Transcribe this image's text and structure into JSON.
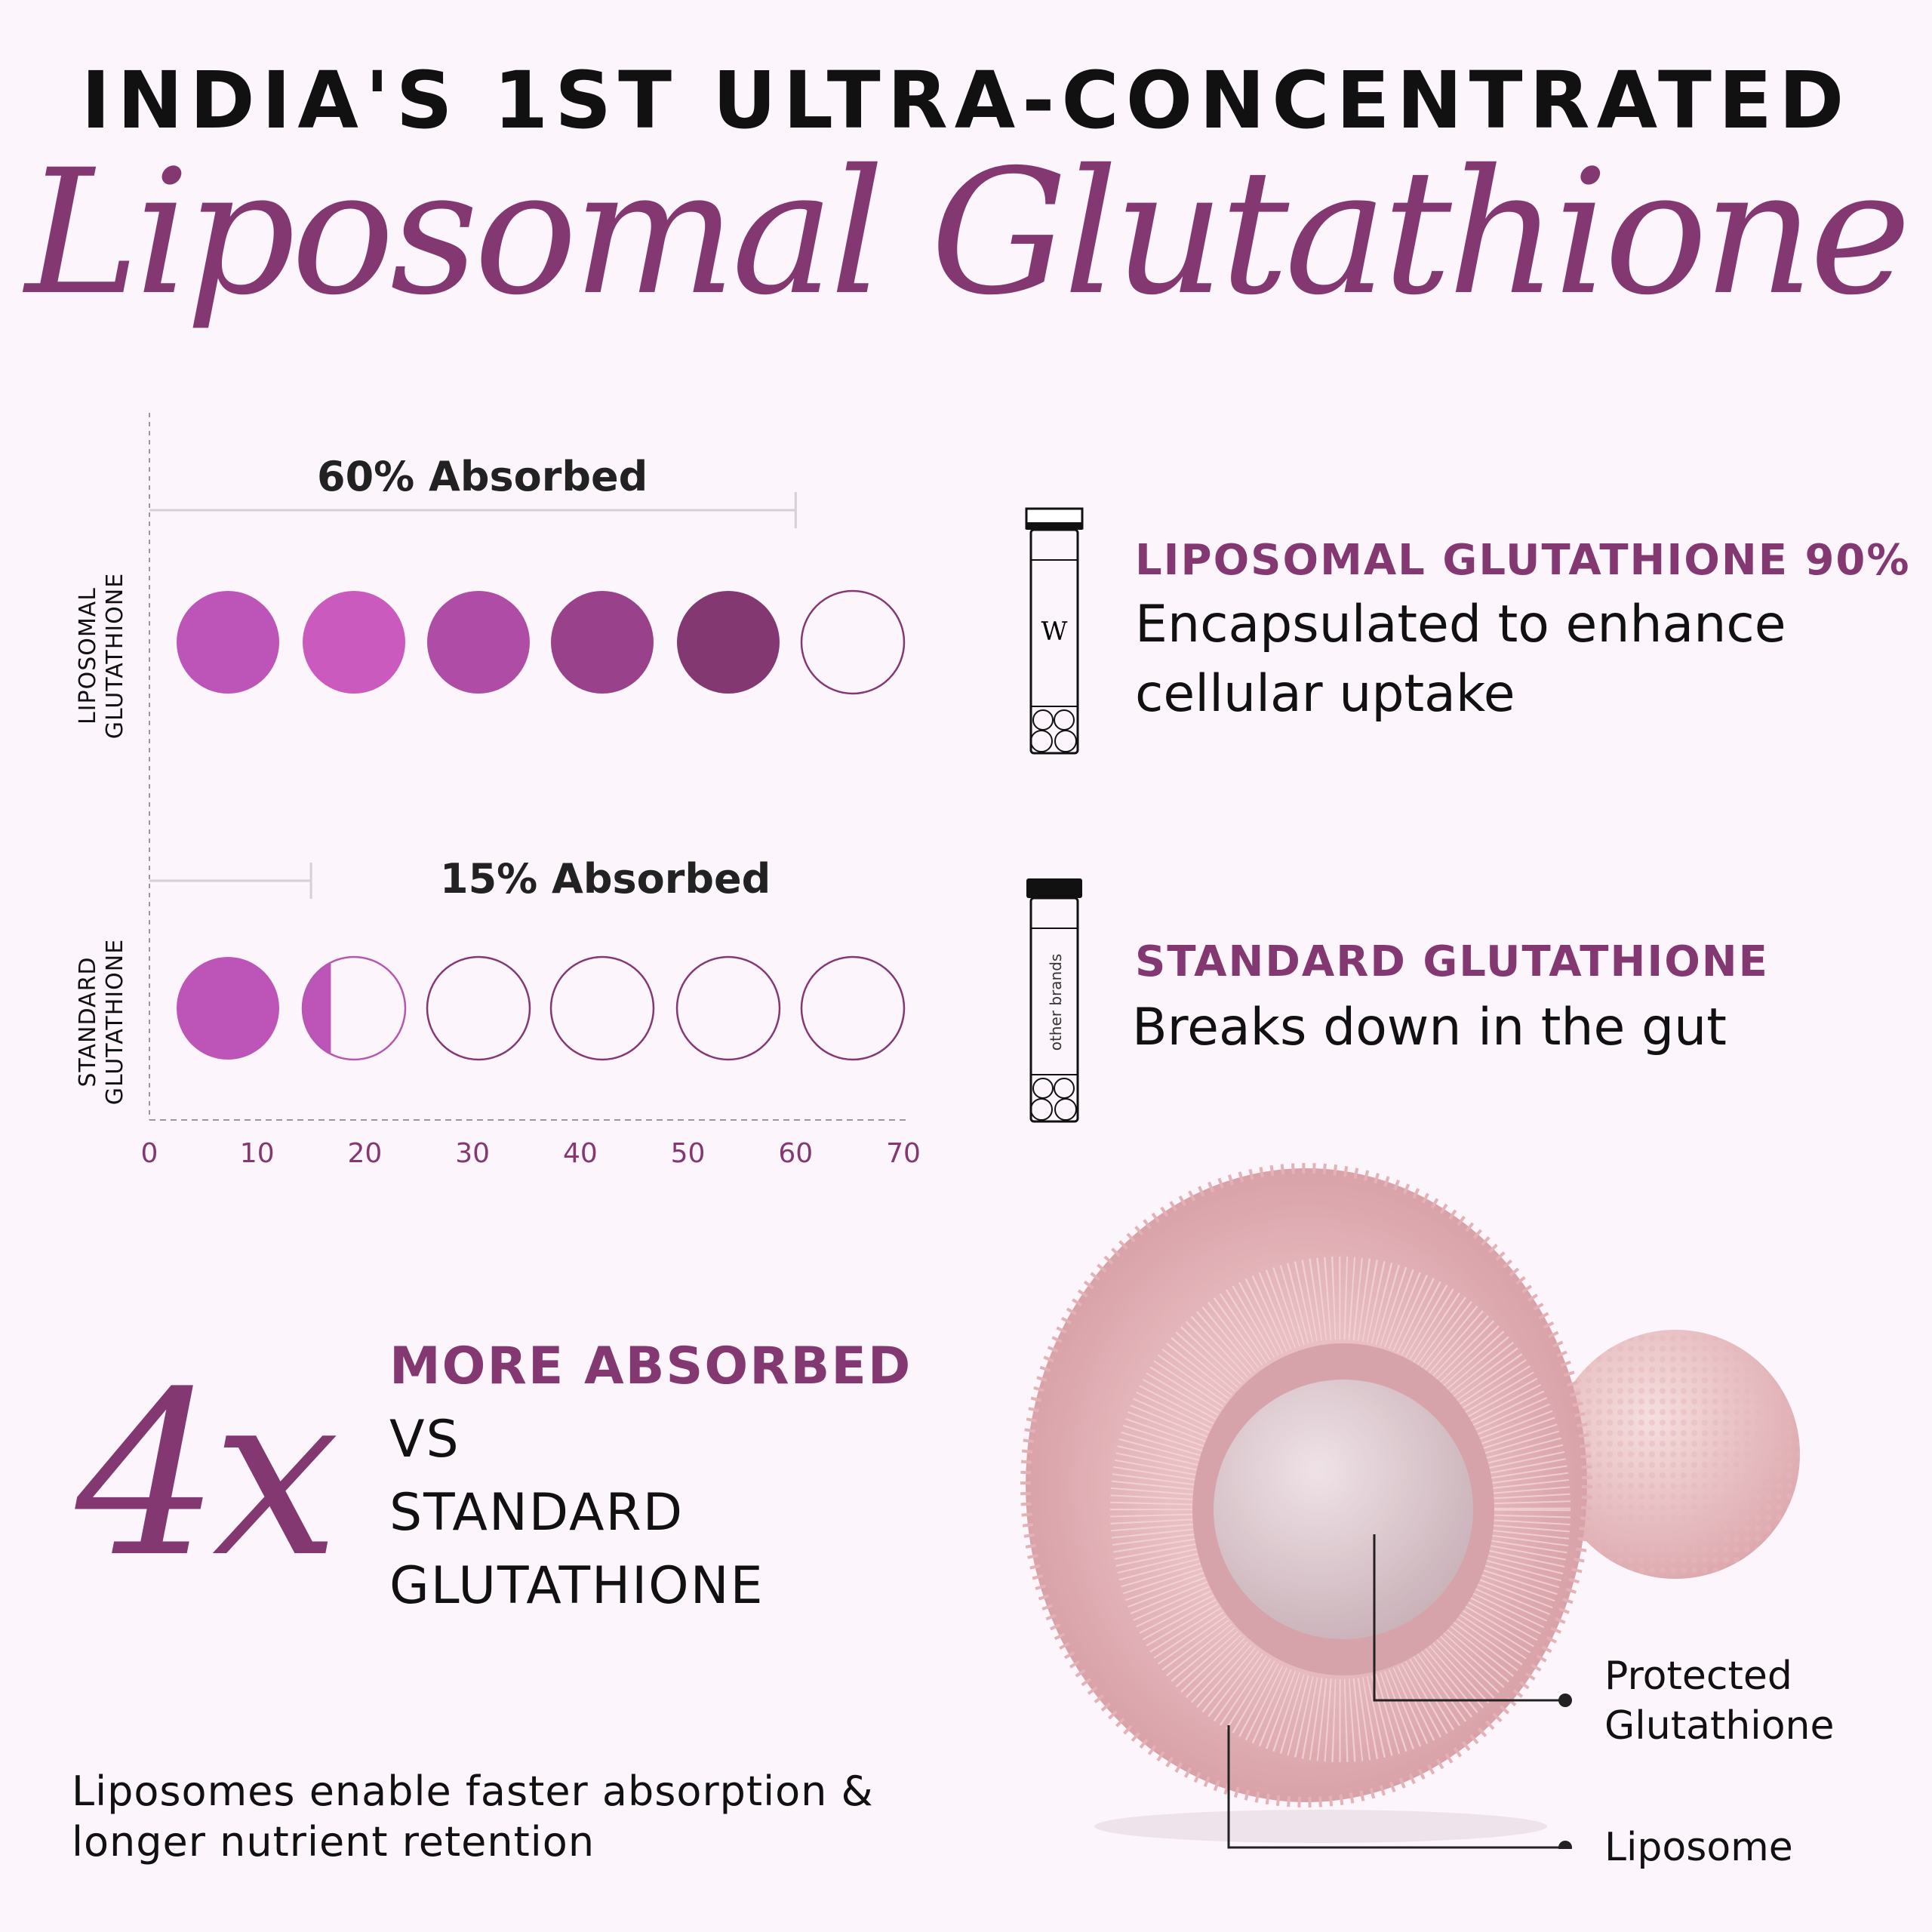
{
  "header": {
    "line1": "INDIA'S 1ST ULTRA-CONCENTRATED",
    "line2": "Liposomal Glutathione"
  },
  "chart_data": {
    "type": "bar",
    "categories": [
      "LIPOSOMAL GLUTATHIONE",
      "STANDARD GLUTATHIONE"
    ],
    "values": [
      60,
      15
    ],
    "annotations": [
      "60% Absorbed",
      "15% Absorbed"
    ],
    "xlim": [
      0,
      70
    ],
    "xticks": [
      "0",
      "10",
      "20",
      "30",
      "40",
      "50",
      "60",
      "70"
    ],
    "dot_unit": "filled circles",
    "colors": {
      "liposomal": [
        "#bd55b8",
        "#cb5abf",
        "#af4ca5",
        "#9a418c",
        "#843872"
      ],
      "standard": "#bd55b8",
      "outline": "#843872"
    }
  },
  "products": [
    {
      "tube_label": "W",
      "heading": "LIPOSOMAL GLUTATHIONE 90%",
      "body_lines": [
        "Encapsulated to enhance",
        "cellular uptake"
      ]
    },
    {
      "tube_label": "other brands",
      "heading": "STANDARD GLUTATHIONE",
      "body_lines": [
        "Breaks down in the gut"
      ]
    }
  ],
  "claim": {
    "multiplier": "4x",
    "highlight": "MORE ABSORBED",
    "lines": [
      "VS",
      "STANDARD",
      "GLUTATHIONE"
    ]
  },
  "footer": {
    "lines": [
      "Liposomes enable faster absorption &",
      "longer nutrient retention"
    ]
  },
  "diagram": {
    "callouts": [
      {
        "lines": [
          "Protected",
          "Glutathione"
        ]
      },
      {
        "lines": [
          "Liposome"
        ]
      }
    ]
  },
  "accent": "#843872"
}
